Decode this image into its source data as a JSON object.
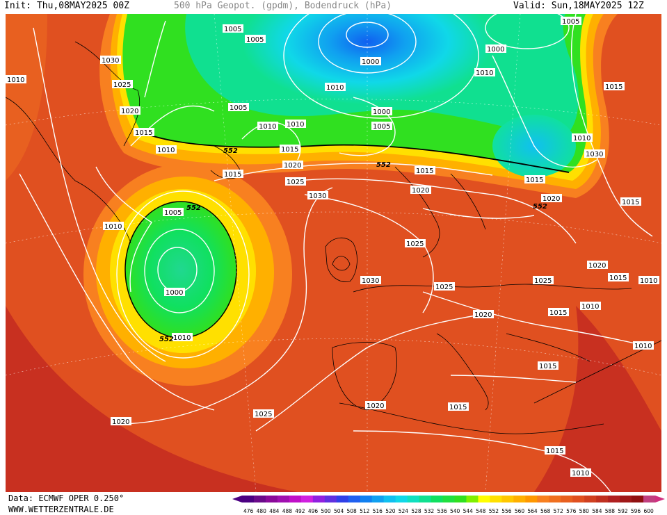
{
  "header": {
    "init": "Init: Thu,08MAY2025 00Z",
    "title": "500 hPa Geopot. (gpdm), Bodendruck (hPa)",
    "valid": "Valid: Sun,18MAY2025 12Z"
  },
  "footer": {
    "data_source": "Data: ECMWF OPER 0.250°",
    "website": "WWW.WETTERZENTRALE.DE"
  },
  "colorbar": {
    "ticks": [
      "476",
      "480",
      "484",
      "488",
      "492",
      "496",
      "500",
      "504",
      "508",
      "512",
      "516",
      "520",
      "524",
      "528",
      "532",
      "536",
      "540",
      "544",
      "548",
      "552",
      "556",
      "560",
      "564",
      "568",
      "572",
      "576",
      "580",
      "584",
      "588",
      "592",
      "596",
      "600"
    ],
    "colors": [
      "#4b0082",
      "#6a0a8a",
      "#8a0a9a",
      "#a010b0",
      "#c010c8",
      "#d020e0",
      "#9020e0",
      "#6030e0",
      "#3040e8",
      "#2060f0",
      "#1080f0",
      "#10a0f0",
      "#10c0f0",
      "#10d8e8",
      "#10e0c0",
      "#10e090",
      "#10e060",
      "#20e040",
      "#30e020",
      "#80f000",
      "#ffff00",
      "#ffe000",
      "#ffc800",
      "#ffb000",
      "#ff9800",
      "#f88020",
      "#f07020",
      "#e86020",
      "#e05020",
      "#d04020",
      "#c03020",
      "#b02020",
      "#a01818",
      "#901010",
      "#c04080"
    ]
  },
  "map": {
    "thick_contour_labels": [
      "552",
      "552",
      "552",
      "552",
      "552",
      "552"
    ],
    "pressure_labels": [
      "1010",
      "1005",
      "1030",
      "1025",
      "1020",
      "1015",
      "1010",
      "1005",
      "1010",
      "1010",
      "1005",
      "1000",
      "1010",
      "1000",
      "1005",
      "1000",
      "1010",
      "1005",
      "1015",
      "1020",
      "1025",
      "1030",
      "1015",
      "1010",
      "1015",
      "1020",
      "1015",
      "1005",
      "1000",
      "1010",
      "1010",
      "1015",
      "1030",
      "1025",
      "1030",
      "1025",
      "1020",
      "1020",
      "1025",
      "1015",
      "1015",
      "1010",
      "1010",
      "1015",
      "1010",
      "1020",
      "1020",
      "1015",
      "1025",
      "1020",
      "1015",
      "1010",
      "1015"
    ]
  }
}
